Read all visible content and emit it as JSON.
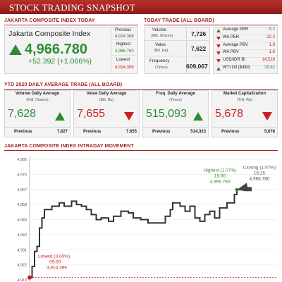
{
  "header": {
    "title": "STOCK TRADING SNAPSHOT"
  },
  "jci": {
    "section_title": "JAKARTA COMPOSITE INDEX TODAY",
    "name": "Jakarta Composite Index",
    "value": "4,966.780",
    "change": "+52.392 (+1.066%)",
    "previous_label": "Previous",
    "previous_value": "4,914.388",
    "highest_label": "Highest",
    "highest_value": "4,966.780",
    "lowest_label": "Lowest",
    "lowest_value": "4,914.399"
  },
  "today_trade": {
    "section_title": "TODAY TRADE (ALL BOARD)",
    "rows": [
      {
        "label": "Volume",
        "sub": "(Mill. Shares)",
        "value": "7,726"
      },
      {
        "label": "Value",
        "sub": "(Bill. Rp)",
        "value": "7,622"
      },
      {
        "label": "Frequency",
        "sub": "(Times)",
        "value": "609,067"
      }
    ]
  },
  "indicators": [
    {
      "label": "Average PER",
      "value": "9.2",
      "dir": "up"
    },
    {
      "label": "WA PER",
      "value": "22.2",
      "dir": "down"
    },
    {
      "label": "Average PBV",
      "value": "1.9",
      "dir": "down"
    },
    {
      "label": "WA PBV",
      "value": "1.6",
      "dir": "down"
    },
    {
      "label": "USD/IDR BI",
      "value": "14,516",
      "dir": "down"
    },
    {
      "label": "WTI Oil ($/bbl)",
      "value": "39.82",
      "dir": "up"
    }
  ],
  "ytd": {
    "section_title": "YTD 2020 DAILY AVERAGE TRADE (ALL BOARD)",
    "cards": [
      {
        "label": "Volume Daily Average",
        "sub": "(Mill. Shares)",
        "value": "7,628",
        "dir": "up",
        "previous_label": "Previous",
        "previous_value": "7,627"
      },
      {
        "label": "Value Daily Average",
        "sub": "(Bill. Rp)",
        "value": "7,655",
        "dir": "down",
        "previous_label": "Previous",
        "previous_value": "7,655"
      },
      {
        "label": "Freq. Daily Average",
        "sub": "(Times)",
        "value": "515,093",
        "dir": "up",
        "previous_label": "Previous",
        "previous_value": "514,323"
      },
      {
        "label": "Market Capitalization",
        "sub": "(Trill. Rp)",
        "value": "5,678",
        "dir": "down",
        "previous_label": "Previous",
        "previous_value": "5,678"
      }
    ]
  },
  "intraday": {
    "section_title": "JAKARTA COMPOSITE INDEX INTRADAY MOVEMENT"
  },
  "chart_data": {
    "type": "line",
    "title": "",
    "ylim": [
      4913,
      4985
    ],
    "yticks": [
      "4,985",
      "4,976",
      "4,967",
      "4,958",
      "4,949",
      "4,940",
      "4,931",
      "4,922",
      "4,913"
    ],
    "xlim": [
      0,
      100
    ],
    "series": [
      {
        "values": [
          [
            0,
            4914.4
          ],
          [
            1,
            4914.4
          ],
          [
            1,
            4921
          ],
          [
            2,
            4921
          ],
          [
            2,
            4930
          ],
          [
            3,
            4930
          ],
          [
            3,
            4933
          ],
          [
            4,
            4933
          ],
          [
            4,
            4944
          ],
          [
            5,
            4944
          ],
          [
            5,
            4950
          ],
          [
            6,
            4950
          ],
          [
            6,
            4955
          ],
          [
            9,
            4955
          ],
          [
            9,
            4957
          ],
          [
            12,
            4957
          ],
          [
            12,
            4959
          ],
          [
            14,
            4959
          ],
          [
            14,
            4957
          ],
          [
            17,
            4957
          ],
          [
            17,
            4960
          ],
          [
            19,
            4960
          ],
          [
            19,
            4958
          ],
          [
            21,
            4958
          ],
          [
            21,
            4957
          ],
          [
            23,
            4957
          ],
          [
            23,
            4955
          ],
          [
            25,
            4955
          ],
          [
            25,
            4952
          ],
          [
            27,
            4952
          ],
          [
            27,
            4949
          ],
          [
            29,
            4949
          ],
          [
            29,
            4950
          ],
          [
            32,
            4950
          ],
          [
            32,
            4948
          ],
          [
            34,
            4948
          ],
          [
            34,
            4951
          ],
          [
            37,
            4951
          ],
          [
            37,
            4954
          ],
          [
            40,
            4954
          ],
          [
            40,
            4953
          ],
          [
            42,
            4953
          ],
          [
            42,
            4950
          ],
          [
            45,
            4950
          ],
          [
            45,
            4949
          ],
          [
            48,
            4949
          ],
          [
            48,
            4947
          ],
          [
            55,
            4947
          ],
          [
            55,
            4951
          ],
          [
            57,
            4951
          ],
          [
            57,
            4955
          ],
          [
            58,
            4955
          ],
          [
            58,
            4959
          ],
          [
            61,
            4959
          ],
          [
            61,
            4957
          ],
          [
            63,
            4957
          ],
          [
            63,
            4954
          ],
          [
            65,
            4954
          ],
          [
            65,
            4957
          ],
          [
            67,
            4957
          ],
          [
            67,
            4950
          ],
          [
            69,
            4950
          ],
          [
            69,
            4948
          ],
          [
            71,
            4948
          ],
          [
            71,
            4952
          ],
          [
            73,
            4952
          ],
          [
            73,
            4954
          ],
          [
            75,
            4954
          ],
          [
            75,
            4950
          ],
          [
            77,
            4950
          ],
          [
            77,
            4956
          ],
          [
            80,
            4956
          ],
          [
            80,
            4959
          ],
          [
            83,
            4959
          ],
          [
            83,
            4964
          ],
          [
            84,
            4964
          ],
          [
            84,
            4966.78
          ]
        ]
      }
    ],
    "annotations": [
      {
        "label": "Highest (1.07%)",
        "time": "15:00",
        "value": "4,966.780"
      },
      {
        "label": "Closing (1.07%)",
        "time": "15:15",
        "value": "4,966.780"
      },
      {
        "label": "Lowest (0.00%)",
        "time": "09:00",
        "value": "4,914.399"
      }
    ],
    "colors": {
      "line": "#333333",
      "highest": "#2e8b34",
      "lowest": "#cc1f1f"
    }
  },
  "colors": {
    "brand": "#a4231f",
    "up": "#2e8b34",
    "down": "#cc1f1f"
  }
}
